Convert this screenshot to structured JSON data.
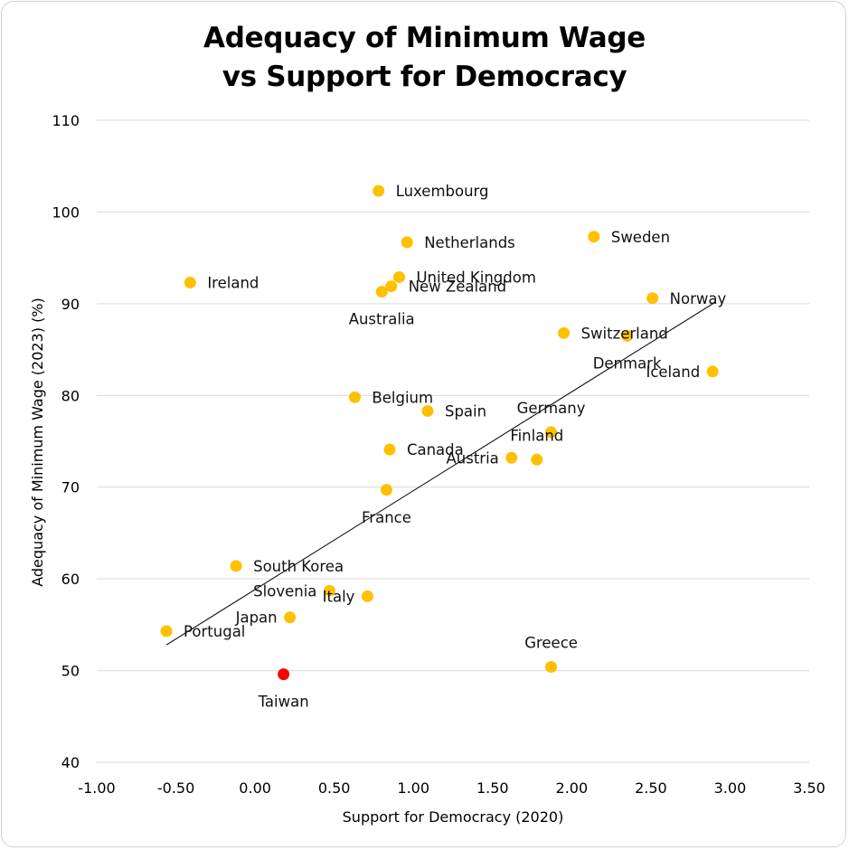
{
  "chart_data": {
    "type": "scatter",
    "title_line1": "Adequacy of Minimum Wage",
    "title_line2": "vs Support for Democracy",
    "xlabel": "Support for Democracy (2020)",
    "ylabel": "Adequacy of Minimum Wage (2023) (%)",
    "xlim": [
      -1.0,
      3.5
    ],
    "ylim": [
      40,
      110
    ],
    "x_ticks": [
      -1.0,
      -0.5,
      0.0,
      0.5,
      1.0,
      1.5,
      2.0,
      2.5,
      3.0,
      3.5
    ],
    "x_tick_labels": [
      "-1.00",
      "-0.50",
      "0.00",
      "0.50",
      "1.00",
      "1.50",
      "2.00",
      "2.50",
      "3.00",
      "3.50"
    ],
    "y_ticks": [
      40,
      50,
      60,
      70,
      80,
      90,
      100,
      110
    ],
    "y_tick_labels": [
      "40",
      "50",
      "60",
      "70",
      "80",
      "90",
      "100",
      "110"
    ],
    "gridlines": "horizontal",
    "point_color": "#FFC000",
    "highlight_color": "#FF0000",
    "trendline": {
      "x": [
        -0.56,
        2.91
      ],
      "y": [
        52.8,
        90.2
      ],
      "color": "#000000"
    },
    "points": [
      {
        "name": "Luxembourg",
        "x": 0.78,
        "y": 102.3,
        "label_pos": "right"
      },
      {
        "name": "Netherlands",
        "x": 0.96,
        "y": 96.7,
        "label_pos": "right"
      },
      {
        "name": "Sweden",
        "x": 2.14,
        "y": 97.3,
        "label_pos": "right"
      },
      {
        "name": "Ireland",
        "x": -0.41,
        "y": 92.3,
        "label_pos": "right"
      },
      {
        "name": "United Kingdom",
        "x": 0.91,
        "y": 92.9,
        "label_pos": "right"
      },
      {
        "name": "New Zealand",
        "x": 0.86,
        "y": 91.9,
        "label_pos": "right"
      },
      {
        "name": "Australia",
        "x": 0.8,
        "y": 91.3,
        "label_pos": "below"
      },
      {
        "name": "Norway",
        "x": 2.51,
        "y": 90.6,
        "label_pos": "right"
      },
      {
        "name": "Switzerland",
        "x": 1.95,
        "y": 86.8,
        "label_pos": "right"
      },
      {
        "name": "Denmark",
        "x": 2.35,
        "y": 86.5,
        "label_pos": "below"
      },
      {
        "name": "Iceland",
        "x": 2.89,
        "y": 82.6,
        "label_pos": "left"
      },
      {
        "name": "Belgium",
        "x": 0.63,
        "y": 79.8,
        "label_pos": "right"
      },
      {
        "name": "Spain",
        "x": 1.09,
        "y": 78.3,
        "label_pos": "right"
      },
      {
        "name": "Germany",
        "x": 1.87,
        "y": 76.0,
        "label_pos": "above"
      },
      {
        "name": "Finland",
        "x": 1.78,
        "y": 73.0,
        "label_pos": "above"
      },
      {
        "name": "Canada",
        "x": 0.85,
        "y": 74.1,
        "label_pos": "right"
      },
      {
        "name": "Austria",
        "x": 1.62,
        "y": 73.2,
        "label_pos": "left"
      },
      {
        "name": "France",
        "x": 0.83,
        "y": 69.7,
        "label_pos": "below"
      },
      {
        "name": "South Korea",
        "x": -0.12,
        "y": 61.4,
        "label_pos": "right"
      },
      {
        "name": "Slovenia",
        "x": 0.47,
        "y": 58.7,
        "label_pos": "left"
      },
      {
        "name": "Italy",
        "x": 0.71,
        "y": 58.1,
        "label_pos": "left"
      },
      {
        "name": "Japan",
        "x": 0.22,
        "y": 55.8,
        "label_pos": "left"
      },
      {
        "name": "Portugal",
        "x": -0.56,
        "y": 54.3,
        "label_pos": "right"
      },
      {
        "name": "Greece",
        "x": 1.87,
        "y": 50.4,
        "label_pos": "above"
      },
      {
        "name": "Taiwan",
        "x": 0.18,
        "y": 49.6,
        "label_pos": "below",
        "highlight": true
      }
    ]
  }
}
